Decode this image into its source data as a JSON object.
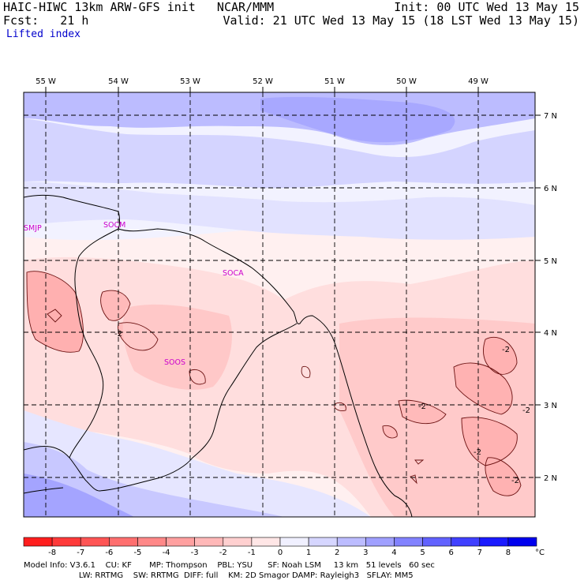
{
  "header": {
    "line1_left": "HAIC-HIWC 13km ARW-GFS init   NCAR/MMM",
    "line1_right": "Init: 00 UTC Wed 13 May 15",
    "line2_left": "Fcst:   21 h",
    "line2_right": "Valid: 21 UTC Wed 13 May 15 (18 LST Wed 13 May 15)",
    "field": "Lifted index"
  },
  "lon_labels": [
    "55 W",
    "54 W",
    "53 W",
    "52 W",
    "51 W",
    "50 W",
    "49 W"
  ],
  "lat_labels": [
    "7 N",
    "6 N",
    "5 N",
    "4 N",
    "3 N",
    "2 N"
  ],
  "stations": [
    "SMJP",
    "SOCM",
    "SOCA",
    "SOOS"
  ],
  "contour_label": "-2",
  "colorbar": {
    "ticks": [
      "-8",
      "-7",
      "-6",
      "-5",
      "-4",
      "-3",
      "-2",
      "-1",
      "0",
      "1",
      "2",
      "3",
      "4",
      "5",
      "6",
      "7",
      "8"
    ],
    "unit": "°C",
    "colors": [
      "#ff1e1e",
      "#ff3a3a",
      "#ff5555",
      "#ff6f6f",
      "#ff8888",
      "#ffa0a0",
      "#ffb8b8",
      "#ffd0d0",
      "#ffe6e6",
      "#f0f0ff",
      "#d6d6ff",
      "#bcbcff",
      "#a0a0ff",
      "#8282ff",
      "#6262ff",
      "#4040ff",
      "#1a1aff",
      "#0000ee"
    ]
  },
  "footer": {
    "line1": "Model Info: V3.6.1    CU: KF       MP: Thompson    PBL: YSU      SF: Noah LSM     13 km   51 levels   60 sec",
    "line2": "                      LW: RRTMG    SW: RRTMG  DIFF: full    KM: 2D Smagor DAMP: Rayleigh3   SFLAY: MM5"
  }
}
